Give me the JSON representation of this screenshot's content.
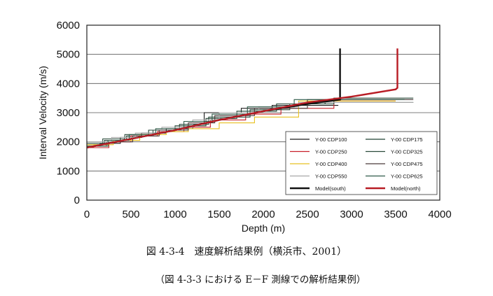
{
  "caption": {
    "main": "図 4-3-4　速度解析結果例（横浜市、2001）",
    "sub": "（図 4-3-3 における E－F 測線での解析結果例）"
  },
  "chart_data": {
    "type": "line",
    "title": "",
    "xlabel": "Depth (m)",
    "ylabel": "Interval Velocity (m/s)",
    "xlim": [
      0,
      4000
    ],
    "ylim": [
      0,
      6000
    ],
    "x_ticks": [
      0,
      500,
      1000,
      1500,
      2000,
      2500,
      3000,
      3500,
      4000
    ],
    "y_ticks": [
      0,
      1000,
      2000,
      3000,
      4000,
      5000,
      6000
    ],
    "grid": "horizontal",
    "legend_position": "lower-right",
    "series": [
      {
        "name": "Y-00 CDP100",
        "color": "#1a1a1a",
        "step": true,
        "points": [
          [
            0,
            1850
          ],
          [
            150,
            1850
          ],
          [
            150,
            1950
          ],
          [
            380,
            1950
          ],
          [
            380,
            2150
          ],
          [
            620,
            2150
          ],
          [
            620,
            2300
          ],
          [
            900,
            2300
          ],
          [
            900,
            2450
          ],
          [
            1200,
            2450
          ],
          [
            1200,
            2600
          ],
          [
            1330,
            2600
          ],
          [
            1330,
            3000
          ],
          [
            1750,
            3000
          ],
          [
            1750,
            3150
          ],
          [
            2100,
            3150
          ],
          [
            2100,
            3250
          ],
          [
            2850,
            3250
          ]
        ]
      },
      {
        "name": "Y-00 CDP175",
        "color": "#1f4030",
        "step": true,
        "points": [
          [
            0,
            1900
          ],
          [
            200,
            1900
          ],
          [
            200,
            2050
          ],
          [
            450,
            2050
          ],
          [
            450,
            2200
          ],
          [
            700,
            2200
          ],
          [
            700,
            2400
          ],
          [
            1000,
            2400
          ],
          [
            1000,
            2550
          ],
          [
            1350,
            2550
          ],
          [
            1350,
            2800
          ],
          [
            1700,
            2800
          ],
          [
            1700,
            3050
          ],
          [
            2150,
            3050
          ],
          [
            2150,
            3300
          ],
          [
            2700,
            3300
          ],
          [
            2700,
            3350
          ],
          [
            3700,
            3350
          ]
        ]
      },
      {
        "name": "Y-00 CDP250",
        "color": "#c8202a",
        "step": true,
        "points": [
          [
            0,
            1800
          ],
          [
            250,
            1800
          ],
          [
            250,
            2000
          ],
          [
            500,
            2000
          ],
          [
            500,
            2200
          ],
          [
            800,
            2200
          ],
          [
            800,
            2350
          ],
          [
            1100,
            2350
          ],
          [
            1100,
            2500
          ],
          [
            1400,
            2500
          ],
          [
            1400,
            2750
          ],
          [
            1800,
            2750
          ],
          [
            1800,
            2950
          ],
          [
            2200,
            2950
          ],
          [
            2200,
            3150
          ],
          [
            2800,
            3150
          ],
          [
            2800,
            3400
          ],
          [
            3500,
            3400
          ]
        ]
      },
      {
        "name": "Y-00 CDP325",
        "color": "#2a4a3a",
        "step": true,
        "points": [
          [
            0,
            1950
          ],
          [
            180,
            1950
          ],
          [
            180,
            2100
          ],
          [
            430,
            2100
          ],
          [
            430,
            2250
          ],
          [
            750,
            2250
          ],
          [
            750,
            2400
          ],
          [
            1050,
            2400
          ],
          [
            1050,
            2600
          ],
          [
            1380,
            2600
          ],
          [
            1380,
            2850
          ],
          [
            1850,
            2850
          ],
          [
            1850,
            3100
          ],
          [
            2300,
            3100
          ],
          [
            2300,
            3300
          ],
          [
            2800,
            3300
          ],
          [
            2800,
            3500
          ],
          [
            3700,
            3500
          ]
        ]
      },
      {
        "name": "Y-00 CDP400",
        "color": "#e8c020",
        "step": true,
        "points": [
          [
            0,
            1900
          ],
          [
            300,
            1900
          ],
          [
            300,
            2050
          ],
          [
            600,
            2050
          ],
          [
            600,
            2250
          ],
          [
            900,
            2250
          ],
          [
            900,
            2350
          ],
          [
            1150,
            2350
          ],
          [
            1150,
            2450
          ],
          [
            1500,
            2450
          ],
          [
            1500,
            2650
          ],
          [
            1900,
            2650
          ],
          [
            1900,
            2850
          ],
          [
            2400,
            2850
          ],
          [
            2400,
            3400
          ],
          [
            3500,
            3400
          ]
        ]
      },
      {
        "name": "Y-00 CDP475",
        "color": "#4a3a3a",
        "step": true,
        "points": [
          [
            0,
            1850
          ],
          [
            220,
            1850
          ],
          [
            220,
            2000
          ],
          [
            520,
            2000
          ],
          [
            520,
            2200
          ],
          [
            820,
            2200
          ],
          [
            820,
            2400
          ],
          [
            1150,
            2400
          ],
          [
            1150,
            2650
          ],
          [
            1450,
            2650
          ],
          [
            1450,
            2900
          ],
          [
            1900,
            2900
          ],
          [
            1900,
            3150
          ],
          [
            2500,
            3150
          ],
          [
            2500,
            3450
          ],
          [
            3700,
            3450
          ]
        ]
      },
      {
        "name": "Y-00 CDP550",
        "color": "#a8a8a8",
        "step": true,
        "points": [
          [
            0,
            2000
          ],
          [
            280,
            2000
          ],
          [
            280,
            2150
          ],
          [
            550,
            2150
          ],
          [
            550,
            2300
          ],
          [
            850,
            2300
          ],
          [
            850,
            2500
          ],
          [
            1200,
            2500
          ],
          [
            1200,
            2750
          ],
          [
            1500,
            2750
          ],
          [
            1500,
            3000
          ],
          [
            1950,
            3000
          ],
          [
            1950,
            3200
          ],
          [
            2400,
            3200
          ],
          [
            2400,
            3350
          ],
          [
            3700,
            3350
          ]
        ]
      },
      {
        "name": "Y-00 CDP625",
        "color": "#2f5a48",
        "step": true,
        "points": [
          [
            0,
            1850
          ],
          [
            240,
            1850
          ],
          [
            240,
            2050
          ],
          [
            480,
            2050
          ],
          [
            480,
            2250
          ],
          [
            780,
            2250
          ],
          [
            780,
            2450
          ],
          [
            1100,
            2450
          ],
          [
            1100,
            2700
          ],
          [
            1420,
            2700
          ],
          [
            1420,
            2950
          ],
          [
            1820,
            2950
          ],
          [
            1820,
            3200
          ],
          [
            2350,
            3200
          ],
          [
            2350,
            3450
          ],
          [
            3600,
            3450
          ]
        ]
      },
      {
        "name": "Model(south)",
        "color": "#111111",
        "step": false,
        "bold": true,
        "points": [
          [
            0,
            1800
          ],
          [
            500,
            2100
          ],
          [
            1000,
            2400
          ],
          [
            1500,
            2750
          ],
          [
            2000,
            3050
          ],
          [
            2500,
            3300
          ],
          [
            2870,
            3450
          ],
          [
            2870,
            5200
          ]
        ]
      },
      {
        "name": "Model(north)",
        "color": "#b81c24",
        "step": false,
        "bold": true,
        "points": [
          [
            0,
            1800
          ],
          [
            500,
            2100
          ],
          [
            1000,
            2400
          ],
          [
            1500,
            2750
          ],
          [
            2000,
            3050
          ],
          [
            2500,
            3350
          ],
          [
            3000,
            3550
          ],
          [
            3500,
            3800
          ],
          [
            3520,
            3850
          ],
          [
            3520,
            5200
          ]
        ]
      }
    ]
  }
}
